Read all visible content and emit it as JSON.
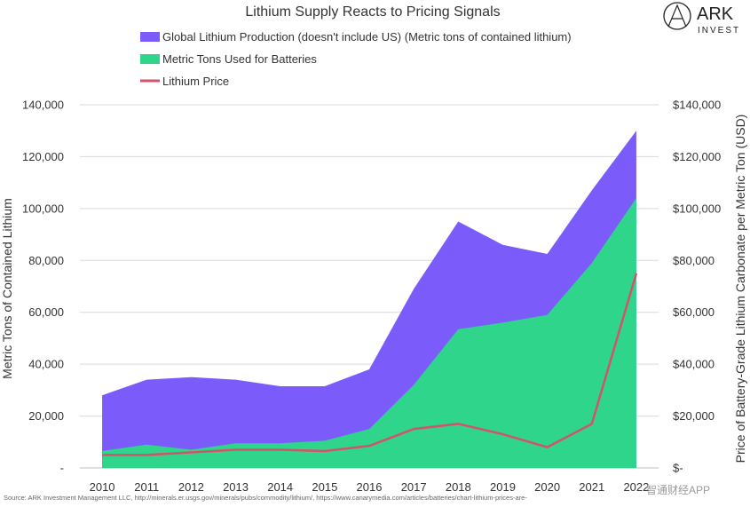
{
  "chart_data": {
    "type": "area",
    "title": "Lithium Supply Reacts to Pricing Signals",
    "x": [
      "2010",
      "2011",
      "2012",
      "2013",
      "2014",
      "2015",
      "2016",
      "2017",
      "2018",
      "2019",
      "2020",
      "2021",
      "2022"
    ],
    "series": [
      {
        "name": "Global Lithium Production (doesn't include US) (Metric tons of contained lithium)",
        "type": "area",
        "axis": "left",
        "color": "#7B5CFA",
        "values": [
          28000,
          34000,
          35000,
          34000,
          31500,
          31500,
          38000,
          69000,
          95000,
          86000,
          82500,
          107000,
          130000
        ]
      },
      {
        "name": "Metric Tons Used for Batteries",
        "type": "area",
        "axis": "left",
        "color": "#2ED58B",
        "values": [
          6500,
          9000,
          7000,
          9500,
          9500,
          10500,
          15000,
          32000,
          53500,
          56000,
          59000,
          79000,
          104000
        ]
      },
      {
        "name": "Lithium Price",
        "type": "line",
        "axis": "right",
        "color": "#D45368",
        "values": [
          5000,
          5000,
          6000,
          7000,
          7000,
          6500,
          8500,
          15000,
          17000,
          13000,
          8000,
          17000,
          75000
        ]
      }
    ],
    "ylabel": "Metric Tons of Contained Lithium",
    "y2label": "Price of Battery-Grade Lithium Carbonate per Metric Ton (USD)",
    "ylim": [
      0,
      140000
    ],
    "y2lim": [
      0,
      140000
    ],
    "yticks": [
      "-",
      "20,000",
      "40,000",
      "60,000",
      "80,000",
      "100,000",
      "120,000",
      "140,000"
    ],
    "y2ticks": [
      "$-",
      "$20,000",
      "$40,000",
      "$60,000",
      "$80,000",
      "$100,000",
      "$120,000",
      "$140,000"
    ],
    "grid": true,
    "legend_position": "top-left",
    "source": "Source: ARK Investment Management LLC, http://minerals.er.usgs.gov/minerals/pubs/commodity/lithium/, https://www.canarymedia.com/articles/batteries/chart-lithium-prices-are-"
  },
  "logo": {
    "name": "ARK",
    "sub": "INVEST"
  },
  "watermark": "智通财经APP"
}
